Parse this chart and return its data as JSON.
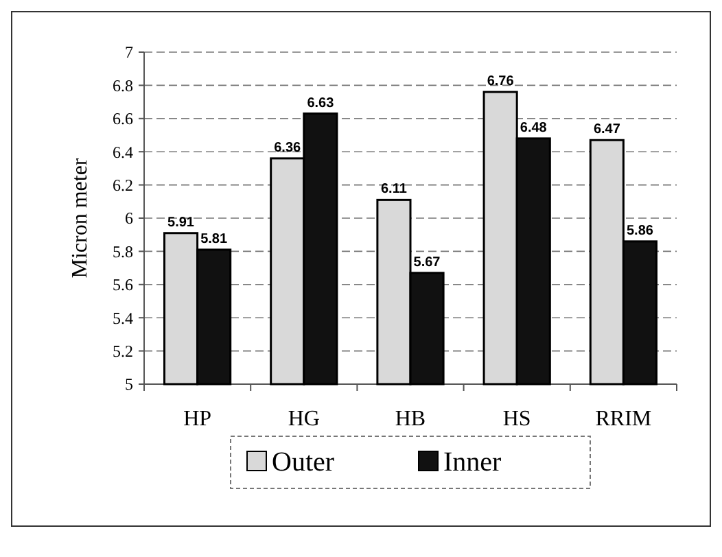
{
  "chart_data": {
    "type": "bar",
    "ylabel": "Micron meter",
    "categories": [
      "HP",
      "HG",
      "HB",
      "HS",
      "RRIM"
    ],
    "series": [
      {
        "name": "Outer",
        "color": "#d9d9d9",
        "values": [
          5.91,
          6.36,
          6.11,
          6.76,
          6.47
        ]
      },
      {
        "name": "Inner",
        "color": "#111111",
        "values": [
          5.81,
          6.63,
          5.67,
          6.48,
          5.86
        ]
      }
    ],
    "ylim": [
      5,
      7
    ],
    "yticks": [
      5,
      5.2,
      5.4,
      5.6,
      5.8,
      6,
      6.2,
      6.4,
      6.6,
      6.8,
      7
    ],
    "grid": "y",
    "legend": "bottom",
    "data_labels": true
  }
}
